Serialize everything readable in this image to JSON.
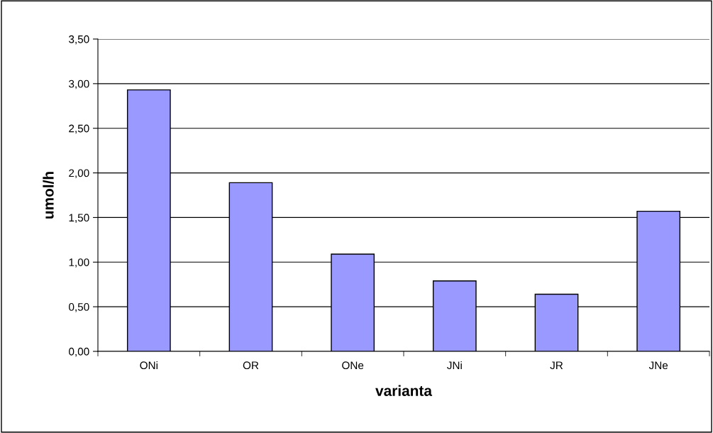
{
  "chart_data": {
    "type": "bar",
    "xlabel": "varianta",
    "ylabel": "umol/h",
    "categories": [
      "ONi",
      "OR",
      "ONe",
      "JNi",
      "JR",
      "JNe"
    ],
    "values": [
      2.93,
      1.89,
      1.09,
      0.79,
      0.64,
      1.57
    ],
    "color": "#9999ff",
    "ylim": [
      0,
      3.5
    ],
    "yticks": [
      {
        "value": 0,
        "label": "0,00"
      },
      {
        "value": 0.5,
        "label": "0,50"
      },
      {
        "value": 1,
        "label": "1,00"
      },
      {
        "value": 1.5,
        "label": "1,50"
      },
      {
        "value": 2,
        "label": "2,00"
      },
      {
        "value": 2.5,
        "label": "2,50"
      },
      {
        "value": 3,
        "label": "3,00"
      },
      {
        "value": 3.5,
        "label": "3,50"
      }
    ],
    "grid": "y",
    "legend": false
  }
}
